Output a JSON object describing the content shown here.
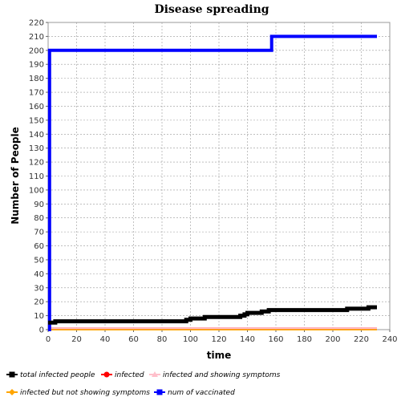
{
  "chart_data": {
    "type": "line",
    "title": "Disease spreading",
    "xlabel": "time",
    "ylabel": "Number of People",
    "xlim": [
      0,
      240
    ],
    "ylim": [
      0,
      220
    ],
    "x_ticks": [
      0,
      20,
      40,
      60,
      80,
      100,
      120,
      140,
      160,
      180,
      200,
      220,
      240
    ],
    "y_ticks": [
      0,
      10,
      20,
      30,
      40,
      50,
      60,
      70,
      80,
      90,
      100,
      110,
      120,
      130,
      140,
      150,
      160,
      170,
      180,
      190,
      200,
      210,
      220
    ],
    "grid": true,
    "legend_position": "bottom",
    "series": [
      {
        "name": "total infected people",
        "color": "#000000",
        "marker": "square",
        "points": [
          [
            0,
            5
          ],
          [
            5,
            5
          ],
          [
            5,
            6
          ],
          [
            97,
            6
          ],
          [
            97,
            7
          ],
          [
            100,
            7
          ],
          [
            100,
            8
          ],
          [
            110,
            8
          ],
          [
            110,
            9
          ],
          [
            135,
            9
          ],
          [
            135,
            10
          ],
          [
            138,
            10
          ],
          [
            138,
            11
          ],
          [
            140,
            11
          ],
          [
            140,
            12
          ],
          [
            150,
            12
          ],
          [
            150,
            13
          ],
          [
            155,
            13
          ],
          [
            155,
            14
          ],
          [
            210,
            14
          ],
          [
            210,
            15
          ],
          [
            225,
            15
          ],
          [
            225,
            16
          ],
          [
            231,
            16
          ]
        ]
      },
      {
        "name": "infected",
        "color": "#ff0000",
        "marker": "circle",
        "points": [
          [
            0,
            1
          ],
          [
            231,
            1
          ]
        ]
      },
      {
        "name": "infected and showing symptoms",
        "color": "#ffc0cb",
        "marker": "triangle",
        "points": [
          [
            0,
            1
          ],
          [
            231,
            1
          ]
        ]
      },
      {
        "name": "infected but not showing symptoms",
        "color": "#ffa500",
        "marker": "diamond",
        "points": [
          [
            0,
            0
          ],
          [
            231,
            0
          ]
        ]
      },
      {
        "name": "num of vaccinated",
        "color": "#0000ff",
        "marker": "square",
        "points": [
          [
            0,
            0
          ],
          [
            1,
            0
          ],
          [
            1,
            200
          ],
          [
            157,
            200
          ],
          [
            157,
            210
          ],
          [
            231,
            210
          ]
        ]
      }
    ]
  }
}
